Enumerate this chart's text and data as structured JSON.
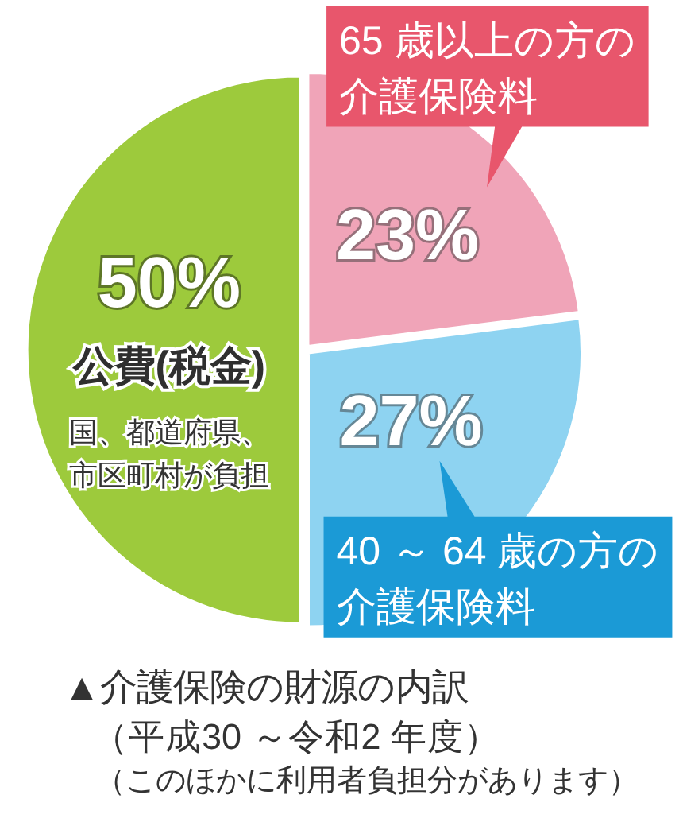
{
  "chart_data": {
    "type": "pie",
    "title": "▲介護保険の財源の内訳",
    "subtitle": "（平成30 ～令和2 年度）",
    "categories": [
      "65 歳以上の方の介護保険料",
      "40 ～ 64 歳の方の介護保険料",
      "公費(税金)"
    ],
    "values": [
      23,
      27,
      50
    ],
    "value_labels": [
      "23%",
      "27%",
      "50%"
    ],
    "colors": [
      "#f0a4b8",
      "#8ed3f1",
      "#9dca3c"
    ],
    "annotations": [
      {
        "text": "国、都道府県、市区町村が負担",
        "x": "公費(税金)"
      },
      "（このほかに利用者負担分があります）"
    ]
  }
}
